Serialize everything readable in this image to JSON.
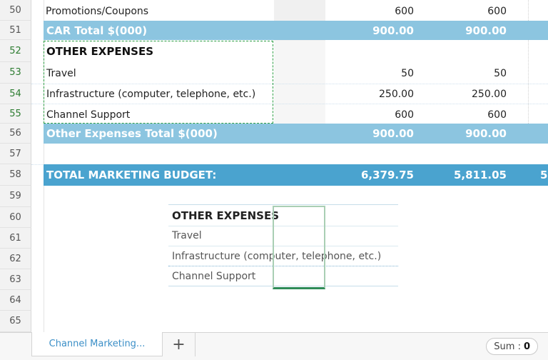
{
  "rows": [
    {
      "num": "50",
      "label": "Promotions/Coupons",
      "v1": "600",
      "v2": "600"
    },
    {
      "num": "51",
      "label": "CAR Total $(000)",
      "v1": "900.00",
      "v2": "900.00"
    },
    {
      "num": "52",
      "label": "OTHER EXPENSES"
    },
    {
      "num": "53",
      "label": "Travel",
      "v1": "50",
      "v2": "50"
    },
    {
      "num": "54",
      "label": "Infrastructure (computer, telephone, etc.)",
      "v1": "250.00",
      "v2": "250.00"
    },
    {
      "num": "55",
      "label": "Channel Support",
      "v1": "600",
      "v2": "600"
    },
    {
      "num": "56",
      "label": "Other Expenses Total $(000)",
      "v1": "900.00",
      "v2": "900.00"
    },
    {
      "num": "57"
    },
    {
      "num": "58",
      "label": "TOTAL MARKETING BUDGET:",
      "v1": "6,379.75",
      "v2": "5,811.05",
      "v3": "5"
    },
    {
      "num": "59"
    },
    {
      "num": "60"
    },
    {
      "num": "61"
    },
    {
      "num": "62"
    },
    {
      "num": "63"
    },
    {
      "num": "64"
    },
    {
      "num": "65"
    }
  ],
  "drag_preview": {
    "header": "OTHER EXPENSES",
    "items": [
      "Travel",
      "Infrastructure (computer, telephone, etc.)",
      "Channel Support"
    ]
  },
  "sheet_tabs": {
    "active": "Channel Marketing...",
    "add_symbol": "+"
  },
  "status": {
    "sum_label": "Sum :",
    "sum_value": "0"
  },
  "colors": {
    "band_mid": "#8cc5e0",
    "band_dark": "#4aa3cf",
    "selection": "#2e9e44",
    "tab_text": "#3b8fc7"
  }
}
